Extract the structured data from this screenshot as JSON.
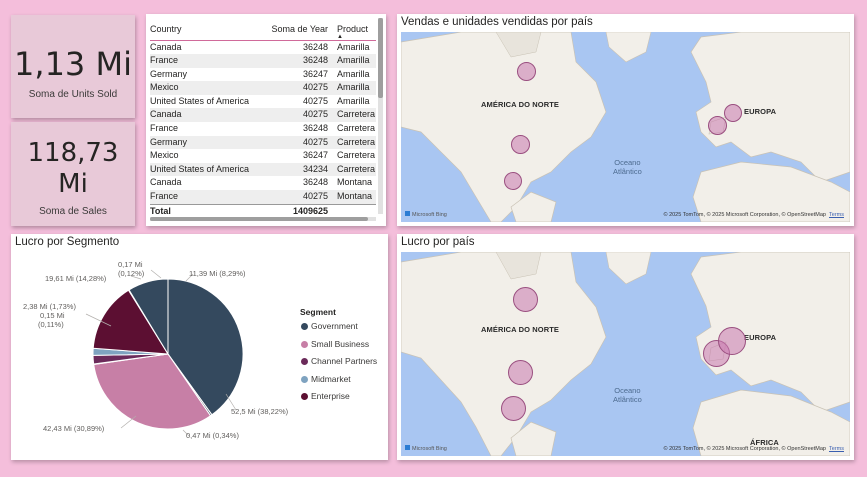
{
  "kpi_units": {
    "value": "1,13 Mi",
    "label": "Soma de Units Sold"
  },
  "kpi_sales": {
    "value_line1": "118,73",
    "value_line2": "Mi",
    "label": "Soma de  Sales"
  },
  "table": {
    "headers": {
      "country": "Country",
      "year": "Soma de Year",
      "product": "Product"
    },
    "rows": [
      [
        "Canada",
        "36248",
        "Amarilla"
      ],
      [
        "France",
        "36248",
        "Amarilla"
      ],
      [
        "Germany",
        "36247",
        "Amarilla"
      ],
      [
        "Mexico",
        "40275",
        "Amarilla"
      ],
      [
        "United States of America",
        "40275",
        "Amarilla"
      ],
      [
        "Canada",
        "40275",
        "Carretera"
      ],
      [
        "France",
        "36248",
        "Carretera"
      ],
      [
        "Germany",
        "40275",
        "Carretera"
      ],
      [
        "Mexico",
        "36247",
        "Carretera"
      ],
      [
        "United States of America",
        "34234",
        "Carretera"
      ],
      [
        "Canada",
        "36248",
        "Montana"
      ],
      [
        "France",
        "40275",
        "Montana"
      ]
    ],
    "total": {
      "label": "Total",
      "value": "1409625"
    }
  },
  "map1": {
    "title": "Vendas e unidades vendidas por país",
    "labels": {
      "na": "AMÉRICA DO NORTE",
      "eu": "EUROPA",
      "ocean_l1": "Oceano",
      "ocean_l2": "Atlântico"
    },
    "bing": "Microsoft Bing",
    "copyright": "© 2025 TomTom, © 2025 Microsoft Corporation, © OpenStreetMap",
    "terms": "Terms"
  },
  "map2": {
    "title": "Lucro por país",
    "labels": {
      "na": "AMÉRICA DO NORTE",
      "eu": "EUROPA",
      "af": "ÁFRICA",
      "ocean_l1": "Oceano",
      "ocean_l2": "Atlântico"
    },
    "bing": "Microsoft Bing",
    "copyright": "© 2025 TomTom, © 2025 Microsoft Corporation, © OpenStreetMap",
    "terms": "Terms"
  },
  "pie": {
    "title": "Lucro por Segmento",
    "legend_title": "Segment",
    "labels": {
      "government": "52,5 Mi (38,22%)",
      "small_business": "42,43 Mi (30,89%)",
      "channel_partners": "0,47 Mi (0,34%)",
      "midmarket_l1": "2,38 Mi (1,73%)",
      "midmarket_l2": "0,15 Mi",
      "midmarket_l3": "(0,11%)",
      "enterprise": "19,61 Mi (14,28%)",
      "top_l1": "0,17 Mi",
      "top_l2": "(0,12%)",
      "right_top": "11,39 Mi (8,29%)"
    }
  },
  "chart_data": {
    "type": "pie",
    "title": "Lucro por Segmento",
    "series_name": "Segment",
    "categories": [
      "Government",
      "Small Business",
      "Channel Partners",
      "Midmarket",
      "Enterprise"
    ],
    "slices": [
      {
        "label": "Government",
        "value": 52.5,
        "color": "#34495e"
      },
      {
        "label": "Government",
        "value": 0.47,
        "color": "#34495e"
      },
      {
        "label": "Small Business",
        "value": 42.43,
        "color": "#c77fa6"
      },
      {
        "label": "Channel Partners",
        "value": 0.15,
        "color": "#6b2a5a"
      },
      {
        "label": "Channel Partners",
        "value": 2.38,
        "color": "#6b2a5a"
      },
      {
        "label": "Midmarket",
        "value": 2.0,
        "color": "#7fa3c0"
      },
      {
        "label": "Enterprise",
        "value": 19.61,
        "color": "#5c0f32"
      },
      {
        "label": "Enterprise",
        "value": 0.17,
        "color": "#5c0f32"
      },
      {
        "label": "Government",
        "value": 11.39,
        "color": "#34495e"
      }
    ],
    "legend": [
      {
        "label": "Government",
        "color": "#34495e"
      },
      {
        "label": "Small Business",
        "color": "#c77fa6"
      },
      {
        "label": "Channel Partners",
        "color": "#6b2a5a"
      },
      {
        "label": "Midmarket",
        "color": "#7fa3c0"
      },
      {
        "label": "Enterprise",
        "color": "#5c0f32"
      }
    ]
  }
}
